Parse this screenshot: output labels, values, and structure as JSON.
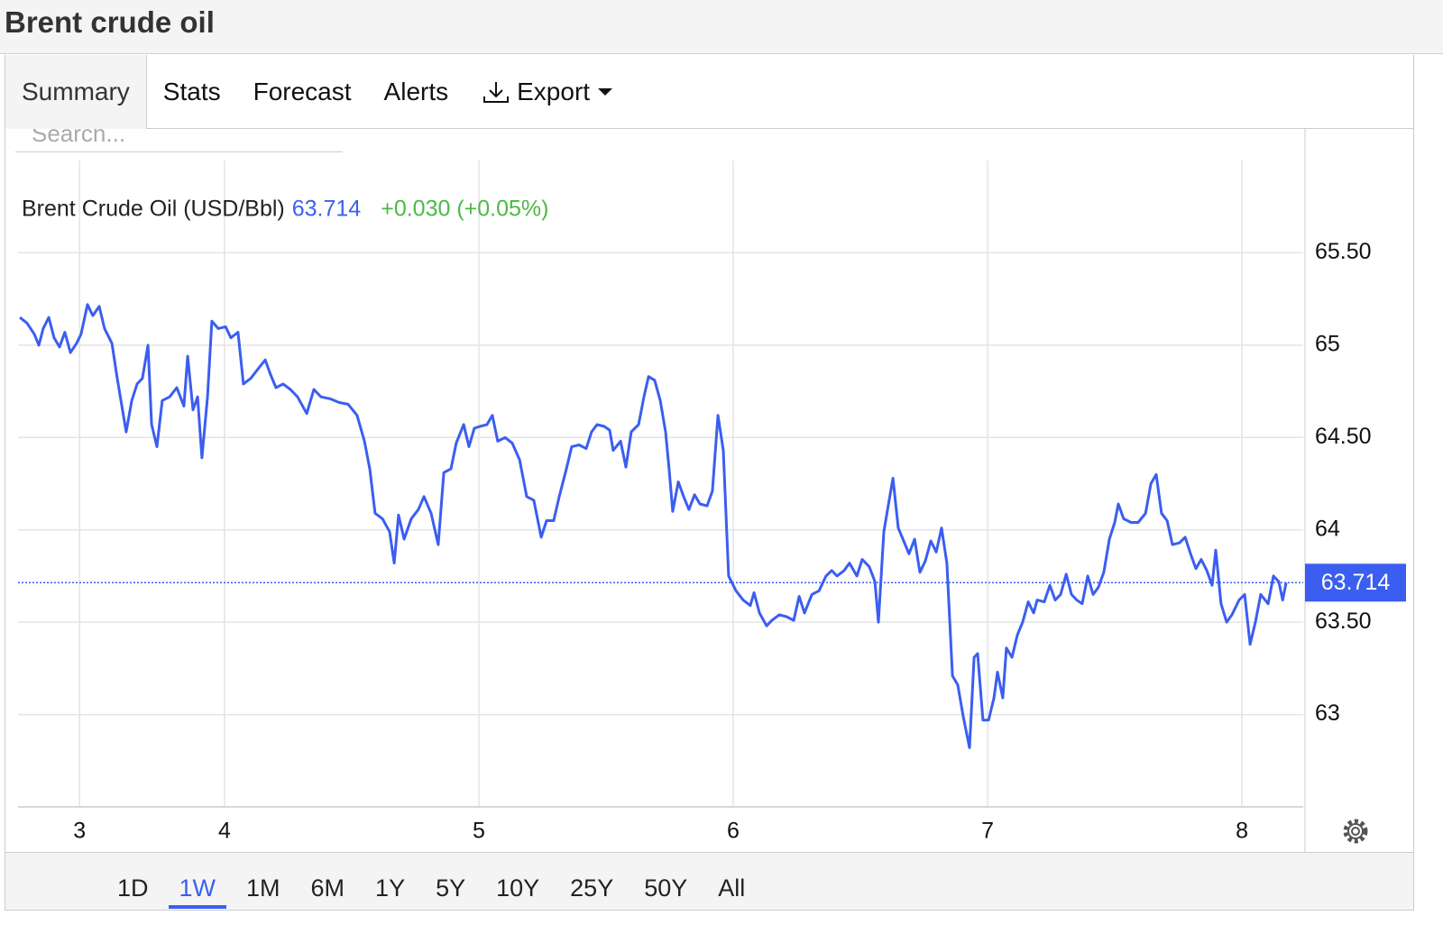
{
  "header": {
    "title": "Brent crude oil"
  },
  "tabs": [
    "Summary",
    "Stats",
    "Forecast",
    "Alerts",
    "Export"
  ],
  "selected_tab": "Summary",
  "search_placeholder": "Search...",
  "range_buttons": [
    "1D",
    "1W",
    "1M",
    "6M",
    "1Y",
    "5Y",
    "10Y",
    "25Y",
    "50Y",
    "All"
  ],
  "selected_range": "1W",
  "chart_data": {
    "type": "line",
    "series": [
      {
        "name": "Brent Crude Oil (USD/Bbl)",
        "color": "#3b5ef0",
        "x": [
          3.195,
          3.223,
          3.252,
          3.27,
          3.287,
          3.309,
          3.33,
          3.351,
          3.372,
          3.394,
          3.418,
          3.436,
          3.461,
          3.482,
          3.507,
          3.528,
          3.557,
          3.578,
          3.613,
          3.635,
          3.656,
          3.677,
          3.699,
          3.713,
          3.734,
          3.755,
          3.784,
          3.812,
          3.84,
          3.855,
          3.876,
          3.894,
          3.911,
          3.933,
          3.95,
          3.975,
          4.004,
          4.025,
          4.053,
          4.074,
          4.103,
          4.131,
          4.16,
          4.181,
          4.202,
          4.23,
          4.259,
          4.287,
          4.323,
          4.351,
          4.379,
          4.415,
          4.45,
          4.486,
          4.521,
          4.55,
          4.571,
          4.592,
          4.621,
          4.649,
          4.667,
          4.684,
          4.706,
          4.734,
          4.762,
          4.784,
          4.812,
          4.84,
          4.862,
          4.89,
          4.911,
          4.94,
          4.961,
          4.982,
          5.004,
          5.032,
          5.053,
          5.074,
          5.103,
          5.131,
          5.16,
          5.188,
          5.216,
          5.245,
          5.266,
          5.294,
          5.316,
          5.344,
          5.365,
          5.394,
          5.422,
          5.443,
          5.465,
          5.493,
          5.514,
          5.528,
          5.557,
          5.578,
          5.599,
          5.628,
          5.649,
          5.667,
          5.691,
          5.713,
          5.734,
          5.748,
          5.762,
          5.784,
          5.805,
          5.826,
          5.848,
          5.869,
          5.897,
          5.918,
          5.94,
          5.961,
          5.982,
          6.011,
          6.039,
          6.067,
          6.082,
          6.103,
          6.131,
          6.152,
          6.181,
          6.209,
          6.238,
          6.259,
          6.28,
          6.309,
          6.337,
          6.365,
          6.387,
          6.408,
          6.436,
          6.457,
          6.486,
          6.507,
          6.535,
          6.557,
          6.571,
          6.592,
          6.613,
          6.628,
          6.649,
          6.67,
          6.691,
          6.713,
          6.734,
          6.755,
          6.777,
          6.798,
          6.819,
          6.84,
          6.862,
          6.883,
          6.904,
          6.929,
          6.947,
          6.961,
          6.982,
          7.004,
          7.025,
          7.039,
          7.06,
          7.074,
          7.096,
          7.117,
          7.138,
          7.16,
          7.181,
          7.195,
          7.223,
          7.245,
          7.266,
          7.287,
          7.309,
          7.33,
          7.351,
          7.372,
          7.394,
          7.415,
          7.436,
          7.457,
          7.479,
          7.5,
          7.514,
          7.535,
          7.564,
          7.592,
          7.621,
          7.642,
          7.663,
          7.684,
          7.706,
          7.727,
          7.755,
          7.777,
          7.798,
          7.819,
          7.84,
          7.862,
          7.883,
          7.897,
          7.918,
          7.94,
          7.961,
          7.989,
          8.011,
          8.032,
          8.053,
          8.074,
          8.103,
          8.124,
          8.145,
          8.16,
          8.174
        ],
        "values": [
          65.15,
          65.12,
          65.06,
          65.0,
          65.09,
          65.15,
          65.04,
          64.99,
          65.07,
          64.96,
          65.01,
          65.06,
          65.22,
          65.16,
          65.21,
          65.09,
          65.01,
          64.82,
          64.53,
          64.7,
          64.79,
          64.82,
          65.0,
          64.57,
          64.45,
          64.7,
          64.72,
          64.77,
          64.67,
          64.94,
          64.65,
          64.72,
          64.39,
          64.72,
          65.13,
          65.09,
          65.1,
          65.04,
          65.07,
          64.79,
          64.82,
          64.87,
          64.92,
          64.84,
          64.77,
          64.79,
          64.76,
          64.72,
          64.63,
          64.76,
          64.72,
          64.71,
          64.69,
          64.68,
          64.62,
          64.48,
          64.33,
          64.09,
          64.06,
          63.99,
          63.82,
          64.08,
          63.95,
          64.06,
          64.11,
          64.18,
          64.09,
          63.92,
          64.31,
          64.33,
          64.47,
          64.57,
          64.45,
          64.55,
          64.56,
          64.57,
          64.62,
          64.48,
          64.5,
          64.47,
          64.38,
          64.18,
          64.16,
          63.96,
          64.05,
          64.05,
          64.18,
          64.33,
          64.45,
          64.46,
          64.44,
          64.53,
          64.57,
          64.56,
          64.54,
          64.43,
          64.48,
          64.34,
          64.53,
          64.57,
          64.72,
          64.83,
          64.81,
          64.7,
          64.53,
          64.33,
          64.1,
          64.26,
          64.18,
          64.11,
          64.19,
          64.14,
          64.13,
          64.21,
          64.62,
          64.43,
          63.75,
          63.67,
          63.62,
          63.59,
          63.66,
          63.55,
          63.48,
          63.51,
          63.54,
          63.53,
          63.51,
          63.64,
          63.55,
          63.65,
          63.67,
          63.75,
          63.78,
          63.75,
          63.78,
          63.82,
          63.75,
          63.84,
          63.8,
          63.72,
          63.5,
          63.99,
          64.16,
          64.28,
          64.01,
          63.94,
          63.87,
          63.95,
          63.77,
          63.83,
          63.94,
          63.88,
          64.01,
          63.82,
          63.21,
          63.16,
          62.99,
          62.82,
          63.31,
          63.33,
          62.97,
          62.97,
          63.09,
          63.23,
          63.09,
          63.36,
          63.31,
          63.43,
          63.5,
          63.61,
          63.55,
          63.62,
          63.61,
          63.7,
          63.62,
          63.65,
          63.76,
          63.65,
          63.62,
          63.6,
          63.75,
          63.65,
          63.69,
          63.77,
          63.95,
          64.04,
          64.14,
          64.06,
          64.04,
          64.04,
          64.09,
          64.25,
          64.3,
          64.09,
          64.05,
          63.92,
          63.93,
          63.96,
          63.87,
          63.79,
          63.84,
          63.78,
          63.7,
          63.89,
          63.6,
          63.5,
          63.54,
          63.62,
          63.65,
          63.38,
          63.5,
          63.65,
          63.6,
          63.75,
          63.72,
          63.62,
          63.714
        ]
      }
    ],
    "last": 63.714,
    "change": "+0.030 (+0.05%)",
    "change_color": "#4cb944",
    "xlim": [
      3.188,
      8.241
    ],
    "xticks": [
      {
        "value": 3.43,
        "label": "3"
      },
      4,
      5,
      6,
      7,
      8
    ],
    "ylim": [
      62.5,
      66
    ],
    "yticks": [
      63,
      {
        "value": 63.5,
        "label": "63.50"
      },
      64,
      {
        "value": 64.5,
        "label": "64.50"
      },
      65,
      {
        "value": 65.5,
        "label": "65.50"
      }
    ],
    "grid": true
  }
}
